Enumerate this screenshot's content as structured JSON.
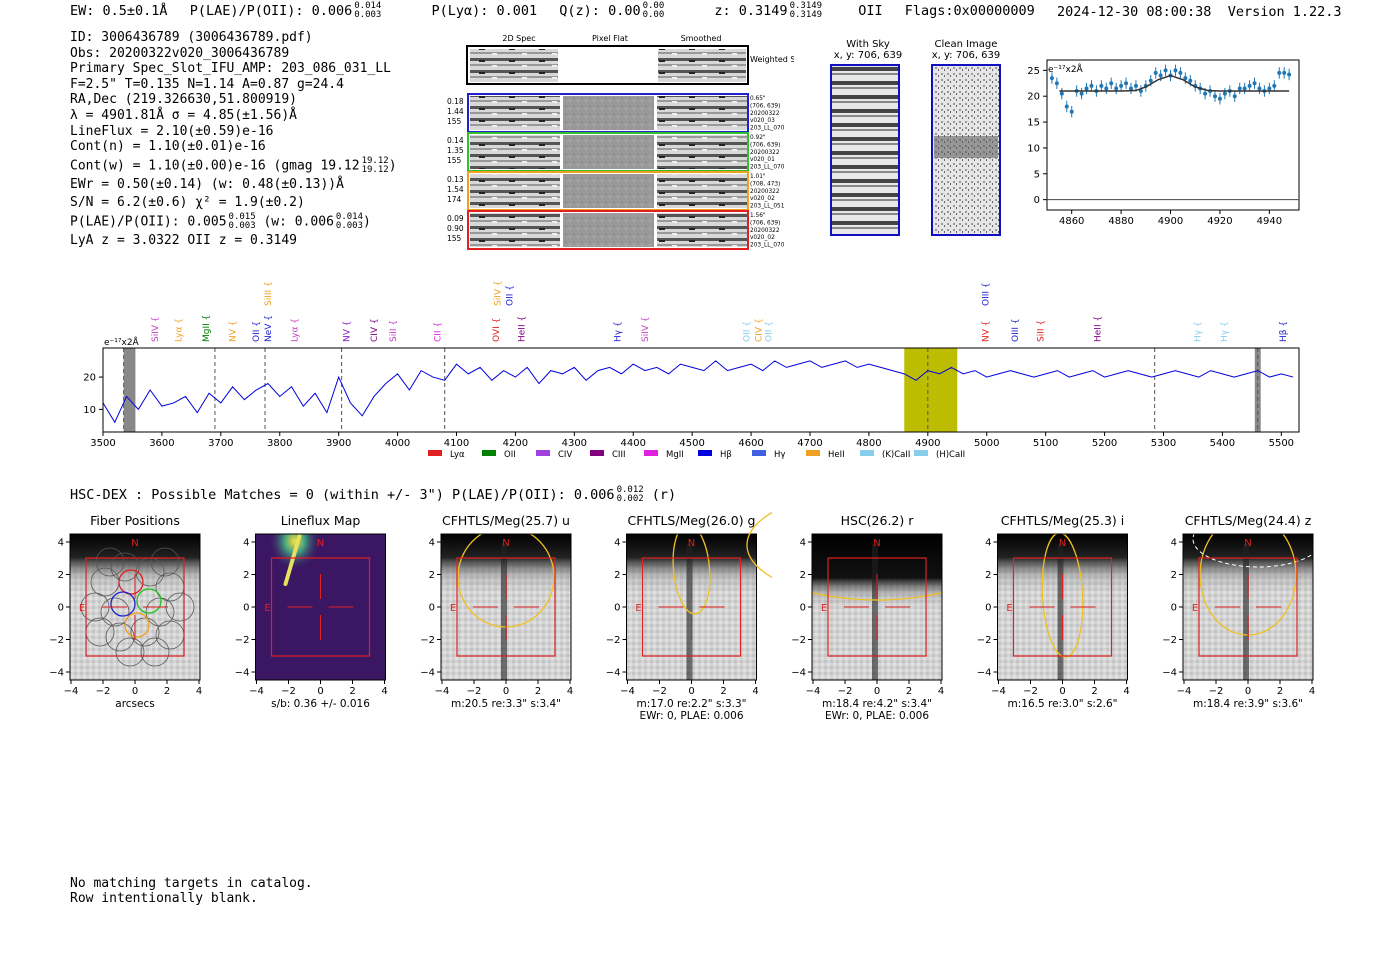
{
  "header": {
    "ew": "EW: 0.5±0.1Å",
    "plae_label": "P(LAE)/P(OII): 0.006",
    "plae_hi": "0.014",
    "plae_lo": "0.003",
    "plya": "P(Lyα): 0.001",
    "qz_label": "Q(z): 0.00",
    "qz_hi": "0.00",
    "qz_lo": "0.00",
    "z_label": "z: 0.3149",
    "z_hi": "0.3149",
    "z_lo": "0.3149",
    "z_line": "OII",
    "flags": "Flags:0x00000009",
    "datetime": "2024-12-30 08:00:38",
    "version": "Version 1.22.3"
  },
  "info": {
    "id": "ID: 3006436789 (3006436789.pdf)",
    "obs": "Obs: 20200322v020_3006436789",
    "primary": "Primary Spec_Slot_IFU_AMP: 203_086_031_LL",
    "params": "F=2.5\"  T=0.135  N=1.14  A=0.87  g=24.4",
    "radec": "RA,Dec (219.326630,51.800919)",
    "lambda": "λ = 4901.81Å  σ = 4.85(±1.56)Å",
    "lineflux": "LineFlux = 2.10(±0.59)e-16",
    "contn": "Cont(n) = 1.10(±0.01)e-16",
    "contw": "Cont(w) = 1.10(±0.00)e-16 (gmag 19.12",
    "contw_hi": "19.12",
    "contw_lo": "19.12",
    "contw_end": ")",
    "ewr": "EWr = 0.50(±0.14) (w: 0.48(±0.13))Å",
    "sn": "S/N = 6.2(±0.6)  χ² = 1.9(±0.2)",
    "plae": "P(LAE)/P(OII): 0.005",
    "plae_hi": "0.015",
    "plae_lo": "0.003",
    "plae_w": "(w: 0.006",
    "plae_w_hi": "0.014",
    "plae_w_lo": "0.003",
    "plae_w_end": ")",
    "z": "LyA z = 3.0322  OII z = 0.3149"
  },
  "cutouts": {
    "col_labels": [
      "2D Spec",
      "Pixel Flat",
      "Smoothed"
    ],
    "weighted_sum": "Weighted Sum",
    "rows": [
      {
        "left": [
          "0.18",
          "1.44",
          "155"
        ],
        "right": [
          "0.65\"",
          "(706, 639)",
          "20200322",
          "v020_03",
          "203_LL_070"
        ],
        "color": "#2020d0"
      },
      {
        "left": [
          "0.14",
          "1.35",
          "155"
        ],
        "right": [
          "0.92\"",
          "(706, 639)",
          "20200322",
          "v020_01",
          "203_LL_070"
        ],
        "color": "#30c030"
      },
      {
        "left": [
          "0.13",
          "1.54",
          "174"
        ],
        "right": [
          "1.01\"",
          "(708, 473)",
          "20200322",
          "v020_02",
          "203_LL_051"
        ],
        "color": "#f0a020"
      },
      {
        "left": [
          "0.09",
          "0.90",
          "155"
        ],
        "right": [
          "1.56\"",
          "(706, 639)",
          "20200322",
          "v020_02",
          "203_LL_070"
        ],
        "color": "#e02020"
      }
    ]
  },
  "sky_panels": {
    "with_sky": "With Sky",
    "with_sky_xy": "x, y: 706, 639",
    "clean": "Clean Image",
    "clean_xy": "x, y: 706, 639"
  },
  "zoom_chart": {
    "type": "scatter",
    "ylabel": "e⁻¹⁷x2Å",
    "xlim": [
      4850,
      4952
    ],
    "ylim": [
      -2,
      27
    ],
    "xticks": [
      4860,
      4880,
      4900,
      4920,
      4940
    ],
    "yticks": [
      0,
      5,
      10,
      15,
      20,
      25
    ],
    "x": [
      4852,
      4854,
      4856,
      4858,
      4860,
      4862,
      4864,
      4866,
      4868,
      4870,
      4872,
      4874,
      4876,
      4878,
      4880,
      4882,
      4884,
      4886,
      4888,
      4890,
      4892,
      4894,
      4896,
      4898,
      4900,
      4902,
      4904,
      4906,
      4908,
      4910,
      4912,
      4914,
      4916,
      4918,
      4920,
      4922,
      4924,
      4926,
      4928,
      4930,
      4932,
      4934,
      4936,
      4938,
      4940,
      4942,
      4944,
      4946,
      4948
    ],
    "y": [
      23.5,
      22.5,
      20.5,
      18,
      17,
      21,
      20.5,
      21.5,
      22,
      21,
      22,
      21.5,
      22.5,
      21.5,
      22,
      22.5,
      21.5,
      22,
      21,
      22,
      23,
      24.5,
      24,
      25,
      24,
      25,
      24.5,
      23.5,
      23,
      22,
      21.5,
      20.5,
      21,
      20,
      19.5,
      20.5,
      21,
      20,
      21.5,
      21.5,
      22,
      22.5,
      21.5,
      21,
      21.5,
      22,
      24.5,
      24.5,
      24.2
    ],
    "fit_x": [
      4855,
      4860,
      4870,
      4880,
      4886,
      4890,
      4895,
      4900,
      4905,
      4910,
      4915,
      4920,
      4930,
      4940,
      4948
    ],
    "fit_y": [
      21,
      21,
      21,
      21,
      21.1,
      21.8,
      23.2,
      24,
      23.2,
      21.8,
      21.1,
      21,
      21,
      21,
      21
    ]
  },
  "spectrum": {
    "type": "line",
    "ylabel": "e⁻¹⁷x2Å",
    "xlim": [
      3500,
      5530
    ],
    "ylim": [
      3,
      29
    ],
    "xticks": [
      3500,
      3600,
      3700,
      3800,
      3900,
      4000,
      4100,
      4200,
      4300,
      4400,
      4500,
      4600,
      4700,
      4800,
      4900,
      5000,
      5100,
      5200,
      5300,
      5400,
      5500
    ],
    "yticks": [
      10,
      20
    ],
    "series_x": [
      3500,
      3520,
      3540,
      3560,
      3580,
      3600,
      3620,
      3640,
      3660,
      3680,
      3700,
      3720,
      3740,
      3760,
      3780,
      3800,
      3820,
      3840,
      3860,
      3880,
      3900,
      3920,
      3940,
      3960,
      3980,
      4000,
      4020,
      4040,
      4060,
      4080,
      4100,
      4120,
      4140,
      4160,
      4180,
      4200,
      4220,
      4240,
      4260,
      4280,
      4300,
      4320,
      4340,
      4360,
      4380,
      4400,
      4420,
      4440,
      4460,
      4480,
      4500,
      4520,
      4540,
      4560,
      4580,
      4600,
      4620,
      4640,
      4660,
      4680,
      4700,
      4720,
      4740,
      4760,
      4780,
      4800,
      4820,
      4840,
      4860,
      4880,
      4900,
      4920,
      4940,
      4960,
      4980,
      5000,
      5020,
      5040,
      5060,
      5080,
      5100,
      5120,
      5140,
      5160,
      5180,
      5200,
      5220,
      5240,
      5260,
      5280,
      5300,
      5320,
      5340,
      5360,
      5380,
      5400,
      5420,
      5440,
      5460,
      5480,
      5500,
      5520
    ],
    "series_y": [
      12,
      6,
      14,
      10,
      16,
      11,
      12,
      14,
      9,
      15,
      12,
      17,
      13,
      16,
      18,
      14,
      17,
      11,
      15,
      9,
      20,
      12,
      8,
      14,
      18,
      21,
      16,
      22,
      20,
      19,
      24,
      21,
      23,
      19,
      22,
      20,
      23,
      18,
      22,
      21,
      23,
      19,
      22,
      23,
      21,
      24,
      22,
      23,
      21,
      24,
      23,
      22,
      25,
      22,
      23,
      24,
      22,
      25,
      23,
      24,
      25,
      23,
      24,
      25,
      23,
      24,
      23,
      22,
      21,
      19,
      22,
      21,
      23,
      21,
      22,
      20,
      21,
      22,
      21,
      20,
      21,
      22,
      20,
      21,
      22,
      20,
      21,
      22,
      21,
      20,
      21,
      22,
      21,
      20,
      22,
      21,
      20,
      21,
      22,
      20,
      21,
      20
    ],
    "grey_bands": [
      [
        3535,
        3555
      ],
      [
        5455,
        5465
      ]
    ],
    "highlight_band": [
      4860,
      4950
    ],
    "highlight_color": "#bcbc00",
    "dashed_lines": [
      3535,
      3690,
      3775,
      3905,
      4080,
      4900,
      5285,
      5460
    ],
    "line_labels": [
      {
        "label": "SiIV",
        "x": 3593,
        "color": "#c040c0",
        "row": "low"
      },
      {
        "label": "Lyα",
        "x": 3633,
        "color": "#f0a020",
        "row": "low"
      },
      {
        "label": "MgII",
        "x": 3680,
        "color": "#008000",
        "row": "low"
      },
      {
        "label": "NV",
        "x": 3725,
        "color": "#f0a020",
        "row": "low"
      },
      {
        "label": "OII",
        "x": 3765,
        "color": "#2020d0",
        "row": "low"
      },
      {
        "label": "NeV",
        "x": 3785,
        "color": "#2020d0",
        "row": "low"
      },
      {
        "label": "SiIII",
        "x": 3785,
        "color": "#f0a020",
        "row": "high"
      },
      {
        "label": "Lyα",
        "x": 3830,
        "color": "#c040c0",
        "row": "low"
      },
      {
        "label": "NV",
        "x": 3918,
        "color": "#8020c0",
        "row": "low"
      },
      {
        "label": "CIV",
        "x": 3965,
        "color": "#800080",
        "row": "low"
      },
      {
        "label": "SiII",
        "x": 3997,
        "color": "#c040c0",
        "row": "low"
      },
      {
        "label": "CII",
        "x": 4073,
        "color": "#e020e0",
        "row": "low"
      },
      {
        "label": "SiIV",
        "x": 4175,
        "color": "#f0a020",
        "row": "high"
      },
      {
        "label": "OII",
        "x": 4195,
        "color": "#2020d0",
        "row": "high"
      },
      {
        "label": "OVI",
        "x": 4172,
        "color": "#e02020",
        "row": "low"
      },
      {
        "label": "HeII",
        "x": 4215,
        "color": "#800080",
        "row": "low"
      },
      {
        "label": "Hγ",
        "x": 4378,
        "color": "#2020d0",
        "row": "low"
      },
      {
        "label": "SiIV",
        "x": 4425,
        "color": "#c040c0",
        "row": "low"
      },
      {
        "label": "OII",
        "x": 4597,
        "color": "#87ceeb",
        "row": "low"
      },
      {
        "label": "CIV",
        "x": 4618,
        "color": "#f0a020",
        "row": "low"
      },
      {
        "label": "OII",
        "x": 4635,
        "color": "#87ceeb",
        "row": "low"
      },
      {
        "label": "OIII",
        "x": 5003,
        "color": "#2020d0",
        "row": "high"
      },
      {
        "label": "NV",
        "x": 5003,
        "color": "#e02020",
        "row": "low"
      },
      {
        "label": "OIII",
        "x": 5053,
        "color": "#2020d0",
        "row": "low"
      },
      {
        "label": "SiII",
        "x": 5096,
        "color": "#e02020",
        "row": "low"
      },
      {
        "label": "HeII",
        "x": 5193,
        "color": "#800080",
        "row": "low"
      },
      {
        "label": "Hγ",
        "x": 5363,
        "color": "#87ceeb",
        "row": "low"
      },
      {
        "label": "Hγ",
        "x": 5408,
        "color": "#87ceeb",
        "row": "low"
      },
      {
        "label": "Hβ",
        "x": 5508,
        "color": "#2020d0",
        "row": "low"
      }
    ],
    "legend": [
      {
        "label": "Lyα",
        "color": "#e02020"
      },
      {
        "label": "OII",
        "color": "#008000"
      },
      {
        "label": "CIV",
        "color": "#a040e0"
      },
      {
        "label": "CIII",
        "color": "#800080"
      },
      {
        "label": "MgII",
        "color": "#e020e0"
      },
      {
        "label": "Hβ",
        "color": "#0000e0"
      },
      {
        "label": "Hγ",
        "color": "#4060e0"
      },
      {
        "label": "HeII",
        "color": "#f0a020"
      },
      {
        "label": "(K)CaII",
        "color": "#87ceeb"
      },
      {
        "label": "(H)CaII",
        "color": "#87ceeb"
      }
    ]
  },
  "hsc": {
    "text": "HSC-DEX : Possible Matches = 0 (within +/- 3\")  P(LAE)/P(OII): 0.006",
    "hi": "0.012",
    "lo": "0.002",
    "end": "(r)"
  },
  "imaging": {
    "ticks": [
      "−4",
      "−2",
      "0",
      "2",
      "4"
    ],
    "panels": [
      {
        "title": "Fiber Positions",
        "sub1": "arcsecs",
        "sub2": "",
        "kind": "fiber"
      },
      {
        "title": "Lineflux Map",
        "sub1": "s/b: 0.36 +/- 0.016",
        "sub2": "",
        "kind": "flux"
      },
      {
        "title": "CFHTLS/Meg(25.7) u",
        "sub1": "m:20.5   re:3.3\"   s:3.4\"",
        "sub2": "",
        "kind": "img"
      },
      {
        "title": "CFHTLS/Meg(26.0) g",
        "sub1": "m:17.0   re:2.2\"   s:3.3\"",
        "sub2": "EWr: 0, PLAE: 0.006",
        "kind": "img"
      },
      {
        "title": "HSC(26.2) r",
        "sub1": "m:18.4   re:4.2\"   s:3.4\"",
        "sub2": "EWr: 0, PLAE: 0.006",
        "kind": "img"
      },
      {
        "title": "CFHTLS/Meg(25.3) i",
        "sub1": "m:16.5   re:3.0\"   s:2.6\"",
        "sub2": "",
        "kind": "img"
      },
      {
        "title": "CFHTLS/Meg(24.4) z",
        "sub1": "m:18.4   re:3.9\"   s:3.6\"",
        "sub2": "",
        "kind": "img"
      }
    ],
    "north": "N",
    "east": "E"
  },
  "bottom": {
    "line1": "No matching targets in catalog.",
    "line2": "Row intentionally blank."
  }
}
